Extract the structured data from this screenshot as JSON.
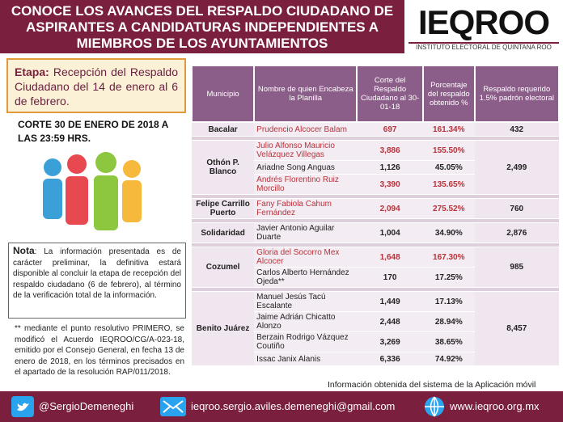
{
  "header": {
    "title": "CONOCE LOS AVANCES DEL RESPALDO CIUDADANO DE ASPIRANTES A CANDIDATURAS INDEPENDIENTES A MIEMBROS DE LOS AYUNTAMIENTOS",
    "logo": "IEQROO",
    "logo_subtitle": "INSTITUTO ELECTORAL DE QUINTANA ROO"
  },
  "etapa": {
    "label": "Etapa:",
    "text": "Recepción del Respaldo Ciudadano del 14 de enero al 6 de febrero."
  },
  "corte": "CORTE 30 DE ENERO DE 2018 A LAS 23:59 HRS.",
  "nota": {
    "label": "Nota",
    "text": ": La información presentada es de carácter preliminar, la definitiva estará disponible al concluir la etapa de recepción del respaldo ciudadano (6 de febrero), al término de la verificación total de la información."
  },
  "footnote": "** mediante el punto resolutivo PRIMERO, se modificó el Acuerdo IEQROO/CG/A-023-18, emitido por el Consejo General, en fecha 13 de enero de 2018, en los términos precisados en el apartado de la resolución RAP/011/2018.",
  "table": {
    "headers": [
      "Municipio",
      "Nombre de quien Encabeza la Planilla",
      "Corte del Respaldo Ciudadano al 30-01-18",
      "Porcentaje del respaldo obtenido %",
      "Respaldo requerido 1.5% padrón electoral"
    ],
    "groups": [
      {
        "municipio": "Bacalar",
        "requerido": "432",
        "candidates": [
          {
            "nombre": "Prudencio Alcocer Balam",
            "corte": "697",
            "porcentaje": "161.34%",
            "color": "#b8323a"
          }
        ]
      },
      {
        "municipio": "Othón P. Blanco",
        "requerido": "2,499",
        "candidates": [
          {
            "nombre": "Julio Alfonso Mauricio Velázquez Villegas",
            "corte": "3,886",
            "porcentaje": "155.50%",
            "color": "#b8323a"
          },
          {
            "nombre": "Ariadne Song Anguas",
            "corte": "1,126",
            "porcentaje": "45.05%",
            "color": "#222222"
          },
          {
            "nombre": "Andrés Florentino Ruiz Morcillo",
            "corte": "3,390",
            "porcentaje": "135.65%",
            "color": "#b8323a"
          }
        ]
      },
      {
        "municipio": "Felipe Carrillo Puerto",
        "requerido": "760",
        "candidates": [
          {
            "nombre": "Fany Fabiola Cahum Fernández",
            "corte": "2,094",
            "porcentaje": "275.52%",
            "color": "#b8323a"
          }
        ]
      },
      {
        "municipio": "Solidaridad",
        "requerido": "2,876",
        "candidates": [
          {
            "nombre": "Javier Antonio Aguilar Duarte",
            "corte": "1,004",
            "porcentaje": "34.90%",
            "color": "#222222"
          }
        ]
      },
      {
        "municipio": "Cozumel",
        "requerido": "985",
        "candidates": [
          {
            "nombre": "Gloria del Socorro Mex Alcocer",
            "corte": "1,648",
            "porcentaje": "167.30%",
            "color": "#b8323a"
          },
          {
            "nombre": "Carlos Alberto Hernández Ojeda**",
            "corte": "170",
            "porcentaje": "17.25%",
            "color": "#222222"
          }
        ]
      },
      {
        "municipio": "Benito Juárez",
        "requerido": "8,457",
        "candidates": [
          {
            "nombre": "Manuel Jesús Tacú Escalante",
            "corte": "1,449",
            "porcentaje": "17.13%",
            "color": "#222222"
          },
          {
            "nombre": "Jaime Adrián Chicatto Alonzo",
            "corte": "2,448",
            "porcentaje": "28.94%",
            "color": "#222222"
          },
          {
            "nombre": "Berzain Rodrigo Vázquez Coutiño",
            "corte": "3,269",
            "porcentaje": "38.65%",
            "color": "#222222"
          },
          {
            "nombre": "Issac Janix Alanis",
            "corte": "6,336",
            "porcentaje": "74.92%",
            "color": "#222222"
          }
        ]
      }
    ]
  },
  "source": "Información obtenida del sistema de la Aplicación móvil",
  "footer": {
    "twitter": "@SergioDemeneghi",
    "email": "ieqroo.sergio.aviles.demeneghi@gmail.com",
    "web": "www.ieqroo.org.mx"
  }
}
